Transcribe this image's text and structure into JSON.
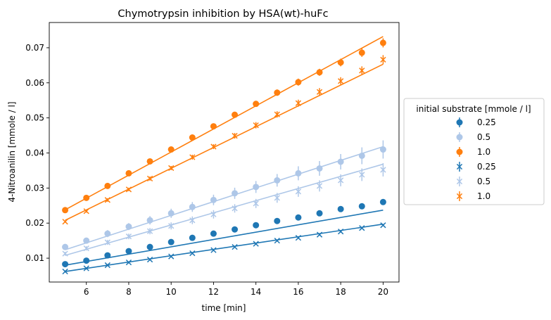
{
  "chart_data": {
    "type": "scatter",
    "title": "Chymotrypsin inhibition by HSA(wt)-huFc",
    "xlabel": "time [min]",
    "ylabel": "4-Nitroanilin [mmole / l]",
    "xlim": [
      4.25,
      20.75
    ],
    "ylim": [
      0.0032,
      0.0772
    ],
    "xticks": [
      "6",
      "8",
      "10",
      "12",
      "14",
      "16",
      "18",
      "20"
    ],
    "yticks": [
      "0.01",
      "0.02",
      "0.03",
      "0.04",
      "0.05",
      "0.06",
      "0.07"
    ],
    "grid": false,
    "legend": {
      "title": "initial substrate [mmole / l]",
      "placement": "outside-right"
    },
    "x": [
      5,
      6,
      7,
      8,
      9,
      10,
      11,
      12,
      13,
      14,
      15,
      16,
      17,
      18,
      19,
      20
    ],
    "series": [
      {
        "name": "0.25",
        "group": "control",
        "marker": "o",
        "color": "#1f77b4",
        "values": [
          0.0083,
          0.0093,
          0.0108,
          0.012,
          0.0132,
          0.0146,
          0.0158,
          0.017,
          0.0182,
          0.0194,
          0.0206,
          0.0216,
          0.0228,
          0.024,
          0.0248,
          0.026
        ],
        "errors": [
          0.0003,
          0.0003,
          0.0003,
          0.0003,
          0.0003,
          0.0003,
          0.0003,
          0.0003,
          0.0003,
          0.0003,
          0.0003,
          0.0003,
          0.0003,
          0.0003,
          0.0003,
          0.0003
        ],
        "fit": [
          0.008,
          0.0237
        ]
      },
      {
        "name": "0.5",
        "group": "control",
        "marker": "o",
        "color": "#aec7e8",
        "values": [
          0.0132,
          0.015,
          0.017,
          0.019,
          0.0208,
          0.0228,
          0.0246,
          0.0266,
          0.0285,
          0.0303,
          0.0322,
          0.0342,
          0.0356,
          0.0375,
          0.0392,
          0.041
        ],
        "errors": [
          0.0006,
          0.0008,
          0.001,
          0.001,
          0.0012,
          0.0013,
          0.0014,
          0.0015,
          0.0016,
          0.0017,
          0.0018,
          0.002,
          0.0021,
          0.0022,
          0.0024,
          0.0026
        ],
        "fit": [
          0.0124,
          0.0418
        ]
      },
      {
        "name": "1.0",
        "group": "control",
        "marker": "o",
        "color": "#ff7f0e",
        "values": [
          0.0237,
          0.0272,
          0.0306,
          0.0342,
          0.0376,
          0.041,
          0.0444,
          0.0476,
          0.0509,
          0.054,
          0.0572,
          0.0602,
          0.063,
          0.0658,
          0.0686,
          0.0714
        ],
        "errors": [
          0.0003,
          0.0003,
          0.0004,
          0.0004,
          0.0005,
          0.0006,
          0.0006,
          0.0007,
          0.0008,
          0.0008,
          0.0009,
          0.001,
          0.001,
          0.0011,
          0.0012,
          0.0013
        ],
        "fit": [
          0.0238,
          0.0732
        ]
      },
      {
        "name": "0.25",
        "group": "inhibited",
        "marker": "x",
        "color": "#1f77b4",
        "values": [
          0.0062,
          0.0071,
          0.008,
          0.0088,
          0.0096,
          0.0105,
          0.0114,
          0.0123,
          0.0132,
          0.0141,
          0.015,
          0.0158,
          0.0167,
          0.0176,
          0.0186,
          0.0194
        ],
        "errors": [
          0.0003,
          0.0003,
          0.0003,
          0.0003,
          0.0003,
          0.0003,
          0.0003,
          0.0003,
          0.0003,
          0.0003,
          0.0003,
          0.0003,
          0.0003,
          0.0003,
          0.0003,
          0.0003
        ],
        "fit": [
          0.0062,
          0.0197
        ]
      },
      {
        "name": "0.5",
        "group": "inhibited",
        "marker": "x",
        "color": "#aec7e8",
        "values": [
          0.0113,
          0.0128,
          0.0145,
          0.0162,
          0.0177,
          0.0192,
          0.0208,
          0.0225,
          0.0242,
          0.0256,
          0.0272,
          0.029,
          0.0306,
          0.0322,
          0.0338,
          0.0352
        ],
        "errors": [
          0.0005,
          0.0006,
          0.0007,
          0.0008,
          0.0009,
          0.001,
          0.0011,
          0.0012,
          0.0012,
          0.0013,
          0.0014,
          0.0015,
          0.0016,
          0.0017,
          0.0018,
          0.0019
        ],
        "fit": [
          0.0108,
          0.0368
        ]
      },
      {
        "name": "1.0",
        "group": "inhibited",
        "marker": "x",
        "color": "#ff7f0e",
        "values": [
          0.0204,
          0.0234,
          0.0266,
          0.0296,
          0.0327,
          0.0357,
          0.0388,
          0.0418,
          0.0449,
          0.0479,
          0.051,
          0.0542,
          0.0574,
          0.0605,
          0.0635,
          0.0666
        ],
        "errors": [
          0.0003,
          0.0004,
          0.0005,
          0.0005,
          0.0006,
          0.0006,
          0.0007,
          0.0007,
          0.0008,
          0.0009,
          0.0009,
          0.001,
          0.0011,
          0.0011,
          0.0012,
          0.0013
        ],
        "fit": [
          0.0208,
          0.0653
        ]
      }
    ]
  }
}
